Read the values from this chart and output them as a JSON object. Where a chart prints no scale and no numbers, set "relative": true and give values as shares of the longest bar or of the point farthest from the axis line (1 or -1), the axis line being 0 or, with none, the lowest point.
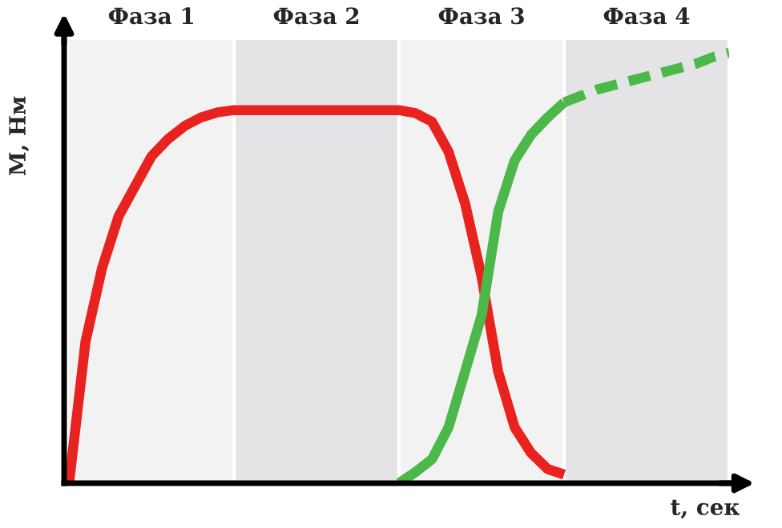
{
  "chart_data": {
    "type": "line",
    "relative": true,
    "xlabel": "t, сек",
    "ylabel": "М, Нм",
    "annotations": [
      "Фаза 1",
      "Фаза 2",
      "Фаза 3",
      "Фаза 4"
    ],
    "categories": [
      null,
      null,
      null,
      null,
      null,
      null,
      null,
      null,
      null,
      null,
      null,
      null,
      null,
      null,
      null,
      null,
      null,
      null,
      null,
      null,
      null,
      null,
      null,
      null,
      null,
      null,
      null,
      null,
      null,
      null,
      null,
      null,
      null,
      null,
      null,
      null,
      null,
      null,
      null,
      null,
      null
    ],
    "series": [
      {
        "color": "#e8231f",
        "line_style": "solid",
        "values": [
          0,
          0.33,
          0.5,
          0.62,
          0.69,
          0.76,
          0.8,
          0.83,
          0.85,
          0.862,
          0.867,
          0.867,
          0.867,
          0.867,
          0.867,
          0.867,
          0.867,
          0.867,
          0.867,
          0.867,
          0.867,
          0.86,
          0.84,
          0.77,
          0.65,
          0.48,
          0.26,
          0.13,
          0.07,
          0.033,
          0.02,
          null,
          null,
          null,
          null,
          null,
          null,
          null,
          null,
          null,
          null
        ]
      },
      {
        "color": "#4cb84a",
        "line_style": "solid",
        "values": [
          null,
          null,
          null,
          null,
          null,
          null,
          null,
          null,
          null,
          null,
          null,
          null,
          null,
          null,
          null,
          null,
          null,
          null,
          null,
          null,
          0,
          0.026,
          0.056,
          0.13,
          0.26,
          0.39,
          0.63,
          0.75,
          0.81,
          0.85,
          0.885,
          null,
          null,
          null,
          null,
          null,
          null,
          null,
          null,
          null,
          null
        ]
      },
      {
        "color": "#4cb84a",
        "line_style": "dashed",
        "values": [
          null,
          null,
          null,
          null,
          null,
          null,
          null,
          null,
          null,
          null,
          null,
          null,
          null,
          null,
          null,
          null,
          null,
          null,
          null,
          null,
          null,
          null,
          null,
          null,
          null,
          null,
          null,
          null,
          null,
          null,
          0.885,
          0.9,
          0.915,
          0.925,
          0.935,
          0.945,
          0.955,
          0.965,
          0.975,
          0.99,
          1.0
        ]
      }
    ]
  }
}
